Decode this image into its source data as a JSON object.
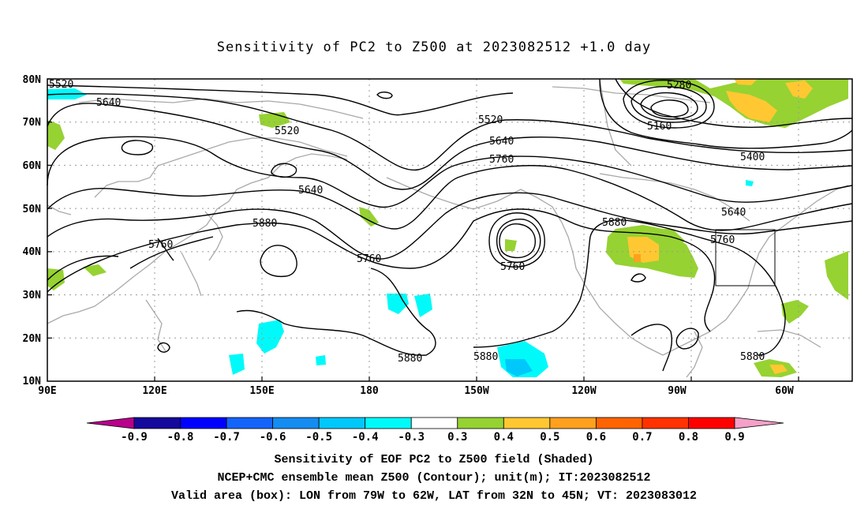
{
  "title": "Sensitivity of PC2 to Z500 at 2023082512 +1.0 day",
  "lat_labels": [
    "80N",
    "70N",
    "60N",
    "50N",
    "40N",
    "30N",
    "20N",
    "10N"
  ],
  "lon_labels": [
    "90E",
    "120E",
    "150E",
    "180",
    "150W",
    "120W",
    "90W",
    "60W"
  ],
  "contour_labels": [
    "5520",
    "5640",
    "5520",
    "5640",
    "5880",
    "5760",
    "5760",
    "5520",
    "5640",
    "5760",
    "5760",
    "5280",
    "5160",
    "5400",
    "5640",
    "5880",
    "5760",
    "5880",
    "5880",
    "5880"
  ],
  "colorbar": {
    "labels": [
      "-0.9",
      "-0.8",
      "-0.7",
      "-0.6",
      "-0.5",
      "-0.4",
      "-0.3",
      "0.3",
      "0.4",
      "0.5",
      "0.6",
      "0.7",
      "0.8",
      "0.9"
    ],
    "colors": [
      "#b8008c",
      "#140a9b",
      "#0000ff",
      "#1464fa",
      "#148cf0",
      "#00c8fa",
      "#00fafa",
      "#ffffff",
      "#96d232",
      "#ffc832",
      "#ffa01e",
      "#ff6400",
      "#ff3200",
      "#ff0000",
      "#f5a0c8"
    ]
  },
  "captions": {
    "line1": "Sensitivity of EOF PC2 to Z500 field (Shaded)",
    "line2": "NCEP+CMC ensemble mean Z500 (Contour); unit(m); IT:2023082512",
    "line3": "Valid area (box): LON from 79W to 62W, LAT from 32N to 45N; VT: 2023083012"
  },
  "valid_box": {
    "lon_west": "79W",
    "lon_east": "62W",
    "lat_south": "32N",
    "lat_north": "45N"
  }
}
